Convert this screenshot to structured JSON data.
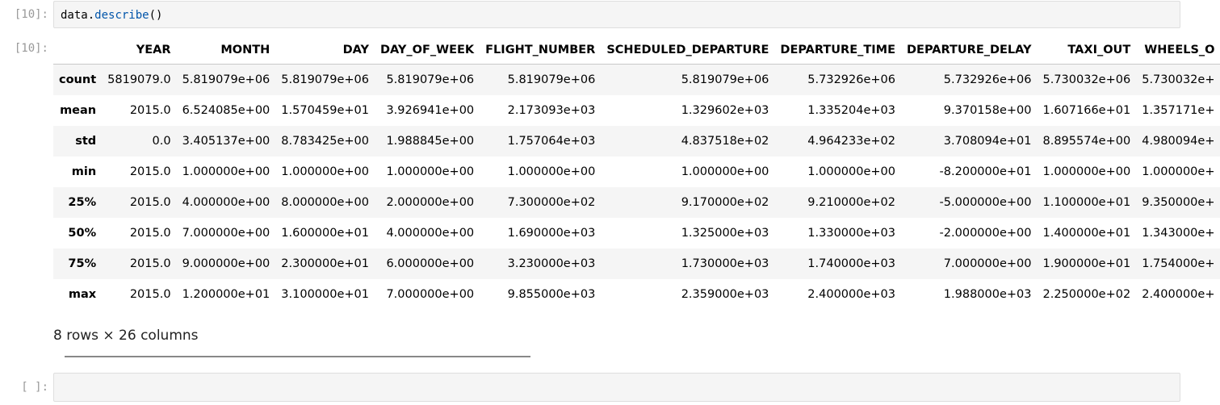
{
  "cells": [
    {
      "prompt": "[10]:",
      "code_obj": "data",
      "code_dot": ".",
      "code_method": "describe",
      "code_parens": "()"
    },
    {
      "prompt": "[ ]:"
    }
  ],
  "output": {
    "prompt": "[10]:",
    "columns": [
      "",
      "YEAR",
      "MONTH",
      "DAY",
      "DAY_OF_WEEK",
      "FLIGHT_NUMBER",
      "SCHEDULED_DEPARTURE",
      "DEPARTURE_TIME",
      "DEPARTURE_DELAY",
      "TAXI_OUT",
      "WHEELS_O"
    ],
    "rows": [
      [
        "count",
        "5819079.0",
        "5.819079e+06",
        "5.819079e+06",
        "5.819079e+06",
        "5.819079e+06",
        "5.819079e+06",
        "5.732926e+06",
        "5.732926e+06",
        "5.730032e+06",
        "5.730032e+"
      ],
      [
        "mean",
        "2015.0",
        "6.524085e+00",
        "1.570459e+01",
        "3.926941e+00",
        "2.173093e+03",
        "1.329602e+03",
        "1.335204e+03",
        "9.370158e+00",
        "1.607166e+01",
        "1.357171e+"
      ],
      [
        "std",
        "0.0",
        "3.405137e+00",
        "8.783425e+00",
        "1.988845e+00",
        "1.757064e+03",
        "4.837518e+02",
        "4.964233e+02",
        "3.708094e+01",
        "8.895574e+00",
        "4.980094e+"
      ],
      [
        "min",
        "2015.0",
        "1.000000e+00",
        "1.000000e+00",
        "1.000000e+00",
        "1.000000e+00",
        "1.000000e+00",
        "1.000000e+00",
        "-8.200000e+01",
        "1.000000e+00",
        "1.000000e+"
      ],
      [
        "25%",
        "2015.0",
        "4.000000e+00",
        "8.000000e+00",
        "2.000000e+00",
        "7.300000e+02",
        "9.170000e+02",
        "9.210000e+02",
        "-5.000000e+00",
        "1.100000e+01",
        "9.350000e+"
      ],
      [
        "50%",
        "2015.0",
        "7.000000e+00",
        "1.600000e+01",
        "4.000000e+00",
        "1.690000e+03",
        "1.325000e+03",
        "1.330000e+03",
        "-2.000000e+00",
        "1.400000e+01",
        "1.343000e+"
      ],
      [
        "75%",
        "2015.0",
        "9.000000e+00",
        "2.300000e+01",
        "6.000000e+00",
        "3.230000e+03",
        "1.730000e+03",
        "1.740000e+03",
        "7.000000e+00",
        "1.900000e+01",
        "1.754000e+"
      ],
      [
        "max",
        "2015.0",
        "1.200000e+01",
        "3.100000e+01",
        "7.000000e+00",
        "9.855000e+03",
        "2.359000e+03",
        "2.400000e+03",
        "1.988000e+03",
        "2.250000e+02",
        "2.400000e+"
      ]
    ],
    "shape_text": "8 rows × 26 columns"
  }
}
